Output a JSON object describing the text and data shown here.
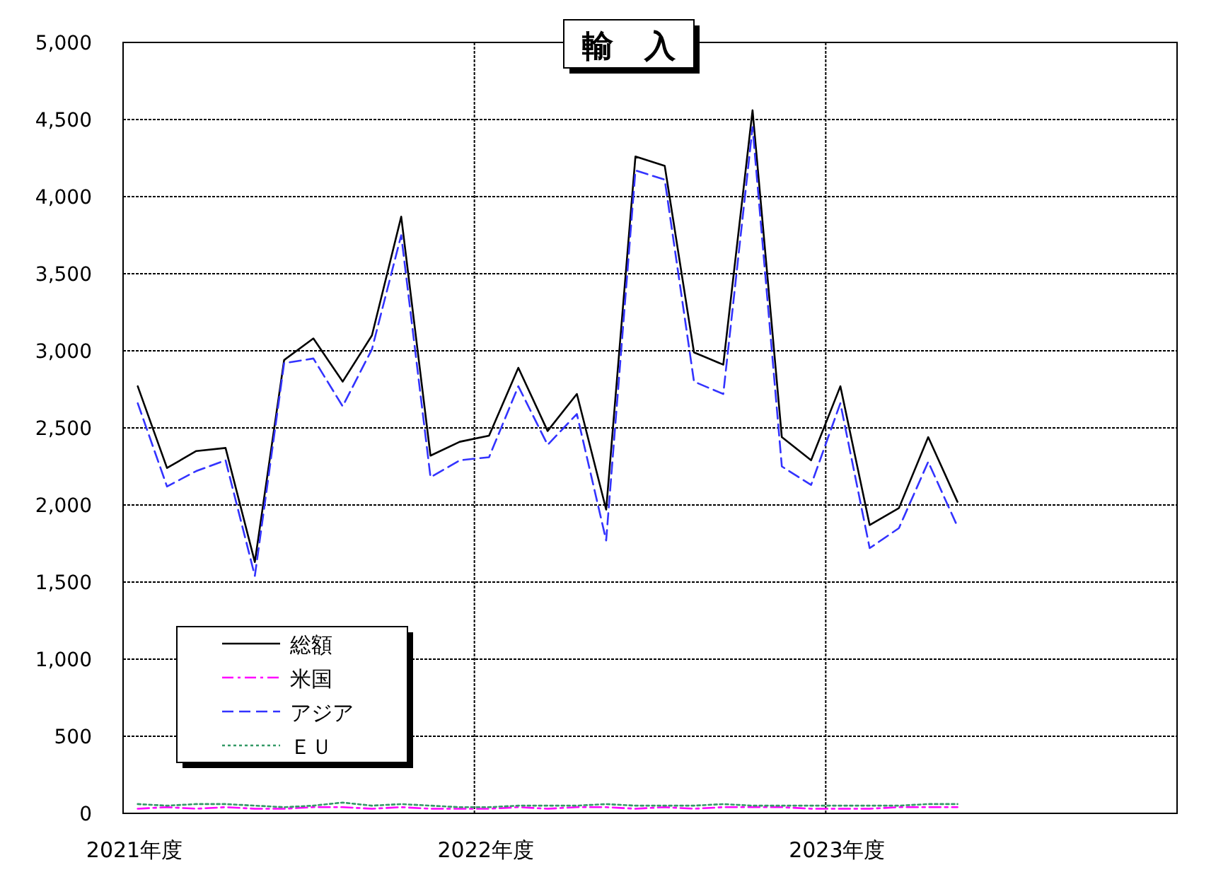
{
  "chart_data": {
    "type": "line",
    "title": "輸　入",
    "categories": [
      "2021年度",
      null,
      null,
      null,
      null,
      null,
      null,
      null,
      null,
      null,
      null,
      null,
      "2022年度",
      null,
      null,
      null,
      null,
      null,
      null,
      null,
      null,
      null,
      null,
      null,
      "2023年度",
      null,
      null,
      null,
      null,
      null,
      null,
      null,
      null,
      null,
      null,
      null
    ],
    "ylim": [
      0,
      5000
    ],
    "yticks": [
      0,
      500,
      {
        "value": 1000,
        "label": "1,000"
      },
      {
        "value": 1500,
        "label": "1,500"
      },
      {
        "value": 2000,
        "label": "2,000"
      },
      {
        "value": 2500,
        "label": "2,500"
      },
      {
        "value": 3000,
        "label": "3,000"
      },
      {
        "value": 3500,
        "label": "3,500"
      },
      {
        "value": 4000,
        "label": "4,000"
      },
      {
        "value": 4500,
        "label": "4,500"
      },
      {
        "value": 5000,
        "label": "5,000"
      }
    ],
    "grid": true,
    "legend": "bottom left",
    "series": [
      {
        "name": "総額",
        "color": "#000000",
        "line_style": "solid",
        "values": [
          2770,
          2240,
          2350,
          2370,
          1630,
          2940,
          3080,
          2800,
          3100,
          3870,
          2320,
          2410,
          2450,
          2890,
          2480,
          2720,
          1970,
          4260,
          4200,
          2990,
          2910,
          4560,
          2440,
          2290,
          2770,
          1870,
          1980,
          2440,
          2020,
          null,
          null,
          null,
          null,
          null,
          null,
          null
        ]
      },
      {
        "name": "米国",
        "color": "#ff00ff",
        "line_style": "dashdot",
        "values": [
          30,
          40,
          30,
          40,
          30,
          30,
          40,
          40,
          30,
          40,
          30,
          30,
          30,
          40,
          30,
          40,
          40,
          30,
          40,
          30,
          40,
          40,
          40,
          30,
          30,
          30,
          40,
          40,
          40,
          null,
          null,
          null,
          null,
          null,
          null,
          null
        ]
      },
      {
        "name": "アジア",
        "color": "#3333ff",
        "line_style": "dashed",
        "values": [
          2660,
          2120,
          2220,
          2290,
          1540,
          2920,
          2950,
          2640,
          3010,
          3750,
          2180,
          2290,
          2310,
          2770,
          2390,
          2590,
          1770,
          4170,
          4110,
          2800,
          2720,
          4450,
          2250,
          2130,
          2660,
          1720,
          1850,
          2280,
          1860,
          null,
          null,
          null,
          null,
          null,
          null,
          null
        ]
      },
      {
        "name": "ＥＵ",
        "color": "#339966",
        "line_style": "dotted",
        "values": [
          60,
          50,
          60,
          60,
          50,
          40,
          50,
          70,
          50,
          60,
          50,
          40,
          40,
          50,
          50,
          50,
          60,
          50,
          50,
          50,
          60,
          50,
          50,
          50,
          50,
          50,
          50,
          60,
          60,
          null,
          null,
          null,
          null,
          null,
          null,
          null
        ]
      }
    ]
  }
}
